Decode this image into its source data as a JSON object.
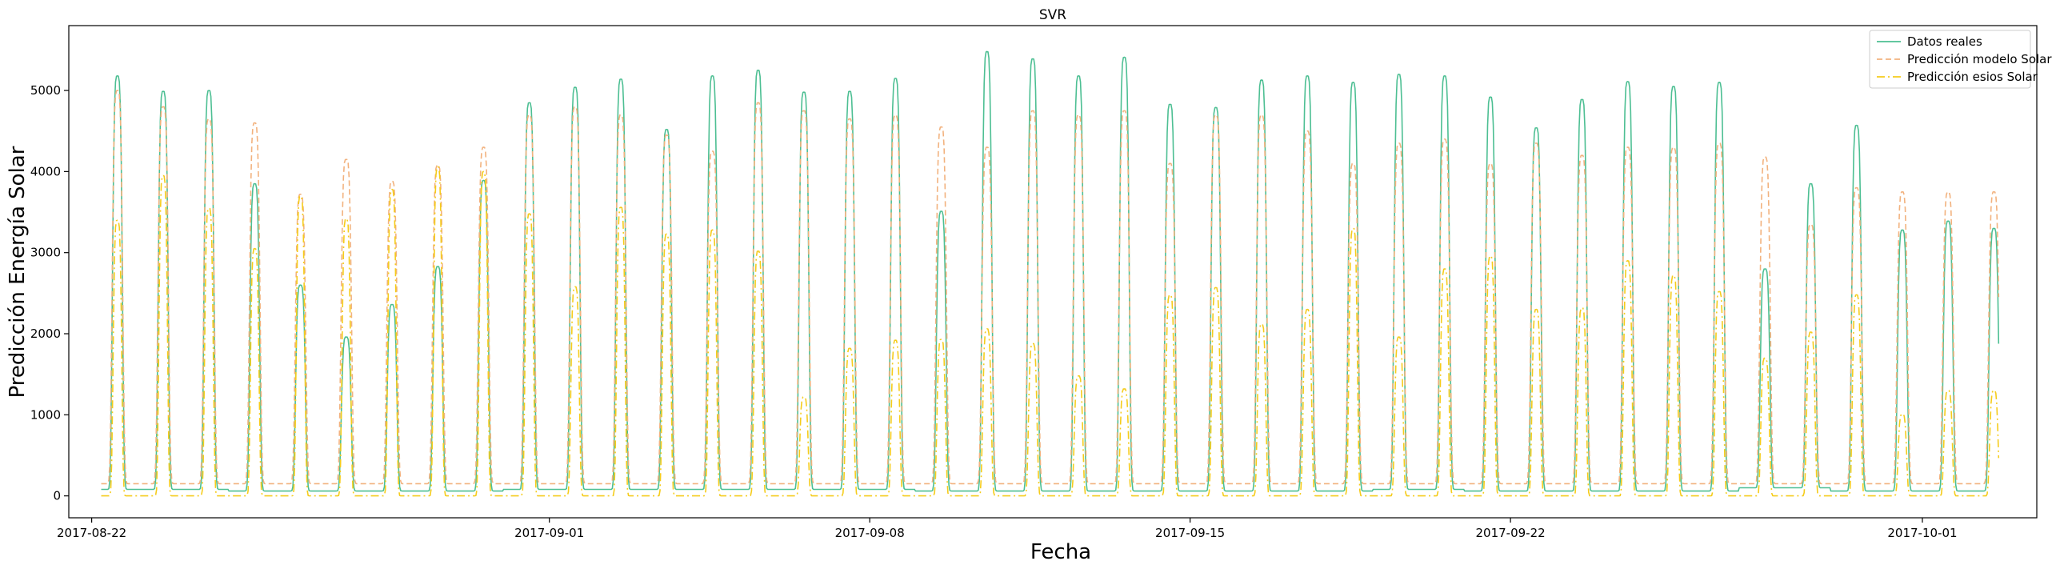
{
  "chart_data": {
    "type": "line",
    "title": "SVR",
    "xlabel": "Fecha",
    "ylabel": "Predicción Energía Solar",
    "ylim": [
      -270,
      5800
    ],
    "yticks": [
      0,
      1000,
      2000,
      3000,
      4000,
      5000
    ],
    "x_start": "2017-08-21T12:00",
    "x_end": "2017-10-03T12:00",
    "xticks": [
      {
        "date": "2017-08-22",
        "label": "2017-08-22"
      },
      {
        "date": "2017-09-01",
        "label": "2017-09-01"
      },
      {
        "date": "2017-09-08",
        "label": "2017-09-08"
      },
      {
        "date": "2017-09-15",
        "label": "2017-09-15"
      },
      {
        "date": "2017-09-22",
        "label": "2017-09-22"
      },
      {
        "date": "2017-10-01",
        "label": "2017-10-01"
      }
    ],
    "legend_position": "top-right",
    "days": [
      "2017-08-22",
      "2017-08-23",
      "2017-08-24",
      "2017-08-25",
      "2017-08-26",
      "2017-08-27",
      "2017-08-28",
      "2017-08-29",
      "2017-08-30",
      "2017-08-31",
      "2017-09-01",
      "2017-09-02",
      "2017-09-03",
      "2017-09-04",
      "2017-09-05",
      "2017-09-06",
      "2017-09-07",
      "2017-09-08",
      "2017-09-09",
      "2017-09-10",
      "2017-09-11",
      "2017-09-12",
      "2017-09-13",
      "2017-09-14",
      "2017-09-15",
      "2017-09-16",
      "2017-09-17",
      "2017-09-18",
      "2017-09-19",
      "2017-09-20",
      "2017-09-21",
      "2017-09-22",
      "2017-09-23",
      "2017-09-24",
      "2017-09-25",
      "2017-09-26",
      "2017-09-27",
      "2017-09-28",
      "2017-09-29",
      "2017-09-30",
      "2017-10-01",
      "2017-10-02"
    ],
    "series": [
      {
        "name": "Datos reales",
        "color": "#4dbf93",
        "dash": "solid",
        "daily_peak": [
          5180,
          4990,
          5000,
          3850,
          2600,
          1960,
          2360,
          2830,
          3890,
          4850,
          5040,
          5140,
          4520,
          5180,
          5250,
          4980,
          4990,
          5150,
          3510,
          5480,
          5390,
          5180,
          5410,
          4830,
          4790,
          5130,
          5180,
          5100,
          5200,
          5180,
          4920,
          4540,
          4890,
          5110,
          5050,
          5100,
          2800,
          3850,
          4570,
          3280,
          3390,
          3300
        ],
        "daily_min": [
          80,
          80,
          80,
          60,
          60,
          60,
          60,
          60,
          60,
          80,
          80,
          80,
          80,
          80,
          80,
          80,
          80,
          80,
          60,
          60,
          60,
          60,
          60,
          60,
          60,
          60,
          60,
          60,
          80,
          80,
          60,
          60,
          60,
          60,
          60,
          60,
          100,
          100,
          60,
          60,
          60,
          60
        ]
      },
      {
        "name": "Predicción modelo Solar",
        "color": "#f2b27e",
        "dash": "dashed",
        "daily_peak": [
          5000,
          4800,
          4650,
          4600,
          3720,
          4150,
          3880,
          4080,
          4300,
          4700,
          4800,
          4700,
          4450,
          4250,
          4850,
          4750,
          4650,
          4700,
          4550,
          4300,
          4750,
          4700,
          4750,
          4100,
          4700,
          4700,
          4500,
          4100,
          4350,
          4400,
          4100,
          4350,
          4200,
          4300,
          4300,
          4350,
          4180,
          3350,
          3800,
          3750,
          3750,
          3750
        ],
        "daily_min": [
          150,
          150,
          150,
          150,
          150,
          150,
          150,
          150,
          150,
          150,
          150,
          150,
          150,
          150,
          150,
          150,
          150,
          150,
          150,
          150,
          150,
          150,
          150,
          150,
          150,
          150,
          150,
          150,
          150,
          150,
          150,
          150,
          150,
          150,
          150,
          150,
          150,
          150,
          150,
          150,
          150,
          150
        ]
      },
      {
        "name": "Predicción esios Solar",
        "color": "#f5cc1c",
        "dash": "dashdot",
        "daily_peak": [
          3400,
          3950,
          3550,
          3050,
          3700,
          3420,
          3780,
          4060,
          4000,
          3480,
          2580,
          3560,
          3230,
          3280,
          3020,
          1220,
          1820,
          1920,
          1930,
          2060,
          1880,
          1480,
          1320,
          2480,
          2570,
          2120,
          2300,
          3300,
          1960,
          2800,
          2960,
          2300,
          2320,
          2900,
          2720,
          2520,
          1700,
          2020,
          2480,
          1010,
          1300,
          1300
        ],
        "daily_min": [
          0,
          0,
          0,
          0,
          0,
          0,
          0,
          0,
          0,
          0,
          0,
          0,
          0,
          0,
          0,
          0,
          0,
          0,
          0,
          0,
          0,
          0,
          0,
          0,
          0,
          0,
          0,
          0,
          0,
          0,
          0,
          0,
          0,
          0,
          0,
          0,
          0,
          0,
          0,
          0,
          0,
          0
        ]
      }
    ]
  }
}
